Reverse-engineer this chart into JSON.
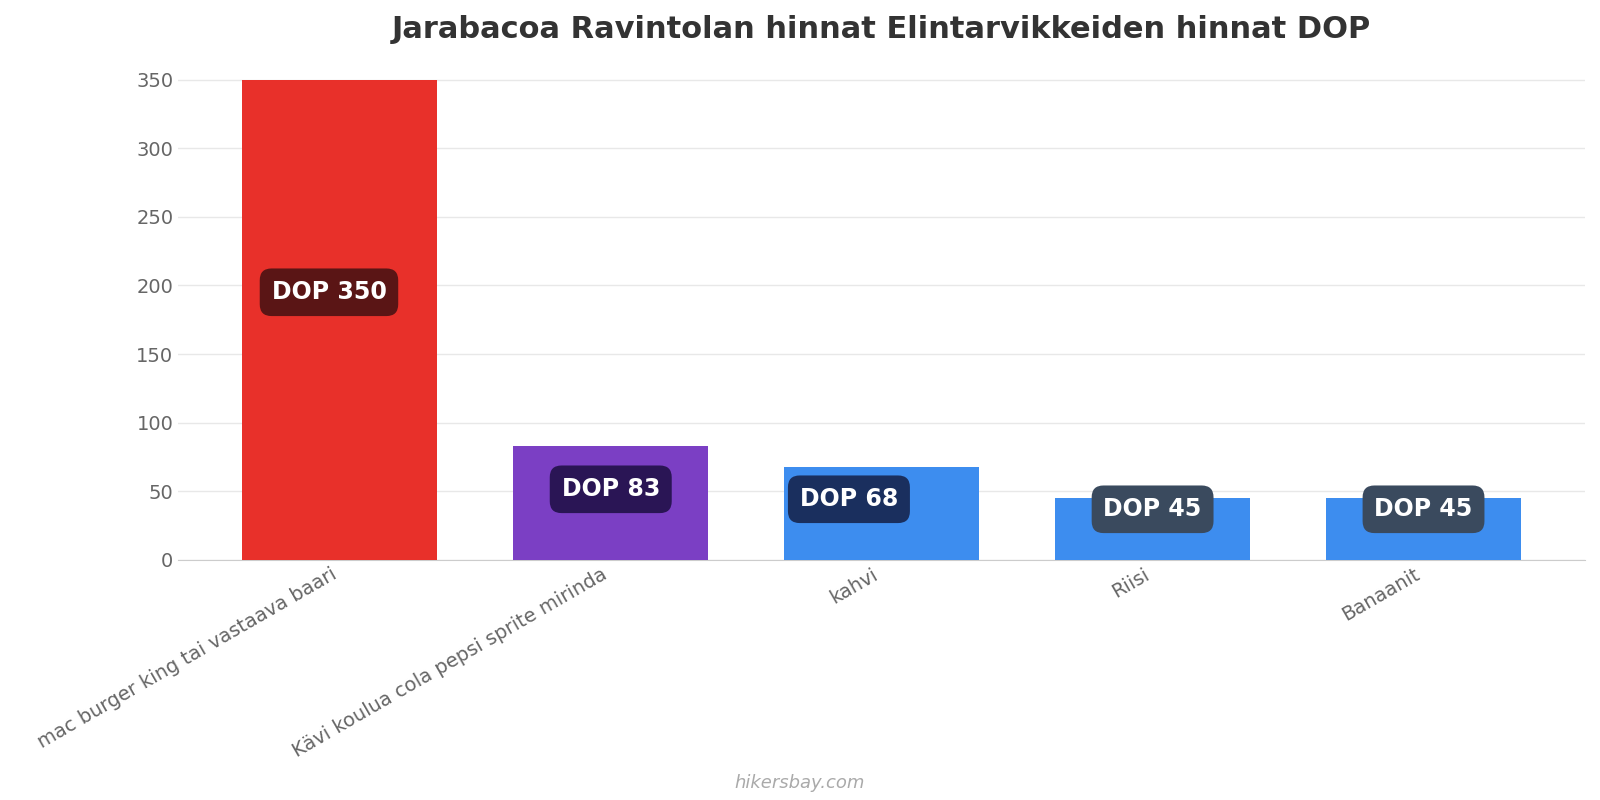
{
  "title": "Jarabacoa Ravintolan hinnat Elintarvikkeiden hinnat DOP",
  "categories": [
    "mac burger king tai vastaava baari",
    "Kävi koulua cola pepsi sprite mirinda",
    "kahvi",
    "Riisi",
    "Banaanit"
  ],
  "values": [
    350,
    83,
    68,
    45,
    45
  ],
  "bar_colors": [
    "#e8302a",
    "#7b3fc4",
    "#3d8def",
    "#3d8def",
    "#3d8def"
  ],
  "label_bg_colors": [
    "#5a1515",
    "#2a1555",
    "#1a2f5e",
    "#3a4a5e",
    "#3a4a5e"
  ],
  "label_top_colors": [
    "#5a1515",
    "#2a1555",
    "#1a2f5e",
    "#555f6e",
    "#555f6e"
  ],
  "labels": [
    "DOP 350",
    "DOP 83",
    "DOP 68",
    "DOP 45",
    "DOP 45"
  ],
  "ylim": [
    0,
    360
  ],
  "yticks": [
    0,
    50,
    100,
    150,
    200,
    250,
    300,
    350
  ],
  "background_color": "#ffffff",
  "title_fontsize": 22,
  "tick_fontsize": 14,
  "label_fontsize": 17,
  "watermark": "hikersbay.com",
  "watermark_color": "#aaaaaa",
  "bar_width": 0.72,
  "label_alignments": [
    "left",
    "center",
    "left",
    "center",
    "center"
  ]
}
